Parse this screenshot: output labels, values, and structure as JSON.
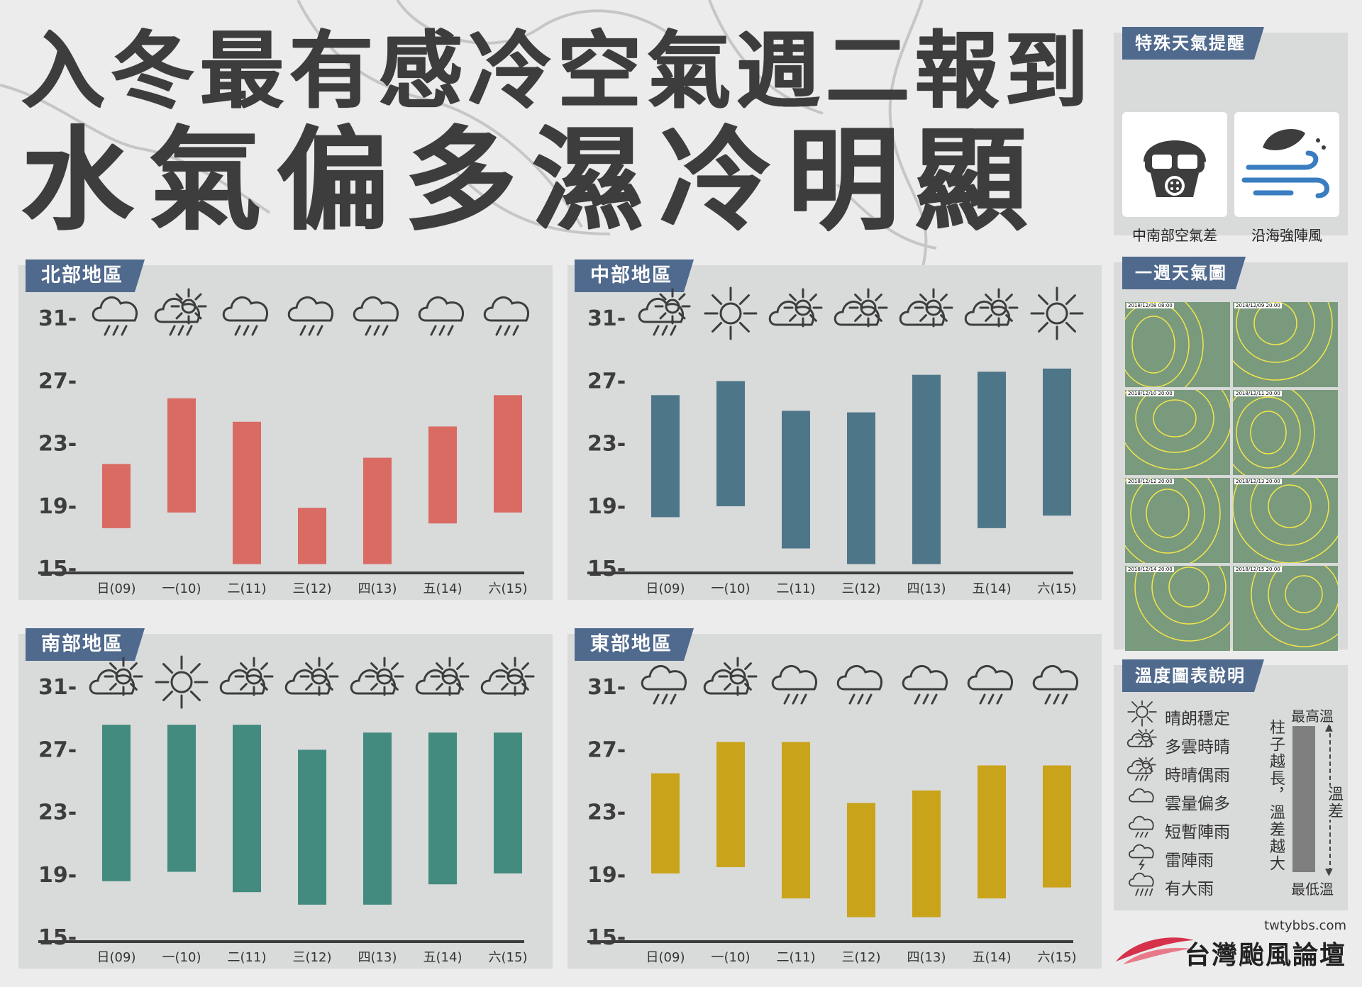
{
  "title_line1": "入冬最有感冷空氣週二報到",
  "title_line2": "水氣偏多濕冷明顯",
  "y_ticks": [
    "31-",
    "27-",
    "23-",
    "19-",
    "15-"
  ],
  "chart_data": [
    {
      "type": "bar",
      "title": "北部地區",
      "categories": [
        "日(09)",
        "一(10)",
        "二(11)",
        "三(12)",
        "四(13)",
        "五(14)",
        "六(15)"
      ],
      "weather": [
        "rain",
        "sun-rain",
        "rain",
        "rain",
        "rain",
        "rain",
        "rain"
      ],
      "series": [
        {
          "low": [
            17.5,
            18.5,
            15.2,
            15.2,
            15.2,
            17.8,
            18.5
          ],
          "high": [
            21.6,
            25.8,
            24.3,
            18.8,
            22.0,
            24.0,
            26.0
          ]
        }
      ],
      "ylim": [
        15,
        31
      ],
      "color": "#d96b63"
    },
    {
      "type": "bar",
      "title": "中部地區",
      "categories": [
        "日(09)",
        "一(10)",
        "二(11)",
        "三(12)",
        "四(13)",
        "五(14)",
        "六(15)"
      ],
      "weather": [
        "sun-rain",
        "sunny",
        "cloudy-sun",
        "cloudy-sun",
        "cloudy-sun",
        "cloudy-sun",
        "sunny"
      ],
      "series": [
        {
          "low": [
            18.2,
            18.9,
            16.2,
            15.2,
            15.2,
            17.5,
            18.3
          ],
          "high": [
            26.0,
            26.9,
            25.0,
            24.9,
            27.3,
            27.5,
            27.7
          ]
        }
      ],
      "ylim": [
        15,
        31
      ],
      "color": "#4e7689"
    },
    {
      "type": "bar",
      "title": "南部地區",
      "categories": [
        "日(09)",
        "一(10)",
        "二(11)",
        "三(12)",
        "四(13)",
        "五(14)",
        "六(15)"
      ],
      "weather": [
        "cloudy-sun",
        "sunny",
        "cloudy-sun",
        "cloudy-sun",
        "cloudy-sun",
        "cloudy-sun",
        "cloudy-sun"
      ],
      "series": [
        {
          "low": [
            18.5,
            19.1,
            17.8,
            17.0,
            17.0,
            18.3,
            19.0
          ],
          "high": [
            28.5,
            28.5,
            28.5,
            26.9,
            28.0,
            28.0,
            28.0
          ]
        }
      ],
      "ylim": [
        15,
        31
      ],
      "color": "#428b7e"
    },
    {
      "type": "bar",
      "title": "東部地區",
      "categories": [
        "日(09)",
        "一(10)",
        "二(11)",
        "三(12)",
        "四(13)",
        "五(14)",
        "六(15)"
      ],
      "weather": [
        "rain",
        "cloudy-sun",
        "rain",
        "rain",
        "rain",
        "rain",
        "rain"
      ],
      "series": [
        {
          "low": [
            19.0,
            19.4,
            17.4,
            16.2,
            16.2,
            17.4,
            18.1
          ],
          "high": [
            25.4,
            27.4,
            27.4,
            23.5,
            24.3,
            25.9,
            25.9
          ]
        }
      ],
      "ylim": [
        15,
        31
      ],
      "color": "#c9a31a"
    }
  ],
  "special": {
    "title": "特殊天氣提醒",
    "items": [
      {
        "label": "中南部空氣差",
        "icon": "gas-mask-icon"
      },
      {
        "label": "沿海強陣風",
        "icon": "wind-leaf-icon"
      }
    ]
  },
  "weekly_map": {
    "title": "一週天氣圖",
    "dates": [
      "2018/12/08 08:00",
      "2018/12/09 20:00",
      "2018/12/10 20:00",
      "2018/12/11 20:00",
      "2018/12/12 20:00",
      "2018/12/13 20:00",
      "2018/12/14 20:00",
      "2018/12/15 20:00"
    ]
  },
  "legend": {
    "title": "溫度圖表說明",
    "items": [
      {
        "label": "晴朗穩定",
        "icon": "sunny"
      },
      {
        "label": "多雲時晴",
        "icon": "cloudy-sun"
      },
      {
        "label": "時晴偶雨",
        "icon": "sun-rain"
      },
      {
        "label": "雲量偏多",
        "icon": "cloud"
      },
      {
        "label": "短暫陣雨",
        "icon": "rain"
      },
      {
        "label": "雷陣雨",
        "icon": "thunder"
      },
      {
        "label": "有大雨",
        "icon": "heavy-rain"
      }
    ],
    "max_label": "最高溫",
    "min_label": "最低溫",
    "note": "柱子越長，溫差越大",
    "diff_label": "溫差"
  },
  "brand": {
    "url": "twtybbs.com",
    "name": "台灣颱風論壇"
  }
}
